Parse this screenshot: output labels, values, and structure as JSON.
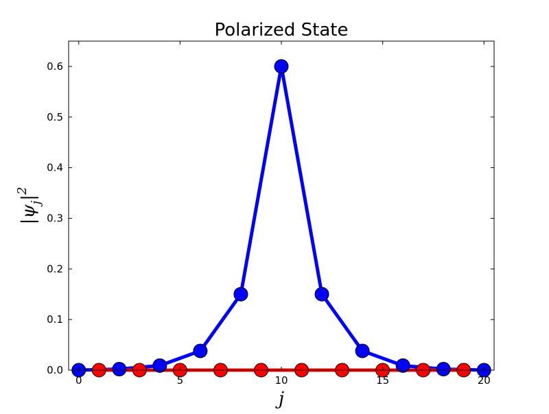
{
  "chart_data": {
    "type": "line",
    "title": "Polarized State",
    "xlabel": "j",
    "ylabel": "|ψj|2",
    "ylabel_parts": {
      "open_bar": "|",
      "psi": "ψ",
      "sub": "j",
      "close_bar": "|",
      "sup": "2"
    },
    "xlim": [
      -0.5,
      20.5
    ],
    "ylim": [
      0,
      0.65
    ],
    "xticks": [
      0,
      5,
      10,
      15,
      20
    ],
    "xtick_labels": [
      "0",
      "5",
      "10",
      "15",
      "20"
    ],
    "yticks": [
      0.0,
      0.1,
      0.2,
      0.3,
      0.4,
      0.5,
      0.6
    ],
    "ytick_labels": [
      "0.0",
      "0.1",
      "0.2",
      "0.3",
      "0.4",
      "0.5",
      "0.6"
    ],
    "grid": false,
    "legend": "none",
    "series": [
      {
        "color": "#0000ff",
        "x": [
          0,
          2,
          4,
          6,
          8,
          10,
          12,
          14,
          16,
          18,
          20
        ],
        "values": [
          0.0,
          0.002,
          0.009,
          0.038,
          0.15,
          0.6,
          0.15,
          0.038,
          0.009,
          0.002,
          0.0
        ]
      },
      {
        "color": "#ff0000",
        "x": [
          1,
          3,
          5,
          7,
          9,
          11,
          13,
          15,
          17,
          19
        ],
        "values": [
          0.0,
          0.0,
          0.0,
          0.0,
          0.0,
          0.0,
          0.0,
          0.0,
          0.0,
          0.0
        ]
      }
    ]
  }
}
